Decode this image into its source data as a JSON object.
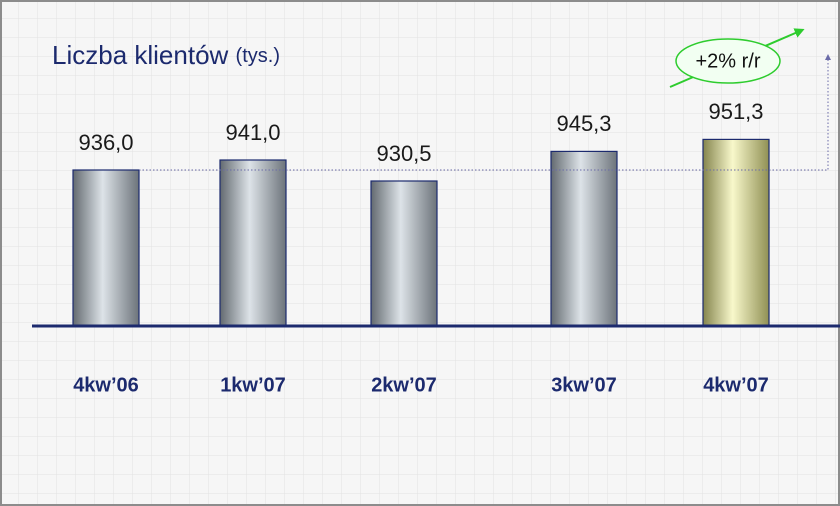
{
  "chart_data": {
    "type": "bar",
    "title": "Liczba klientów",
    "subtitle": "(tys.)",
    "annotation": "+2% r/r",
    "categories": [
      "4kw’06",
      "1kw’07",
      "2kw’07",
      "3kw’07",
      "4kw’07"
    ],
    "values": [
      936.0,
      941.0,
      930.5,
      945.3,
      951.3
    ],
    "value_labels": [
      "936,0",
      "941,0",
      "930,5",
      "945,3",
      "951,3"
    ],
    "colors": [
      "#b4c0cc",
      "#b4c0cc",
      "#b4c0cc",
      "#b4c0cc",
      "#f0f08c"
    ],
    "ylim": [
      858,
      1000
    ]
  }
}
